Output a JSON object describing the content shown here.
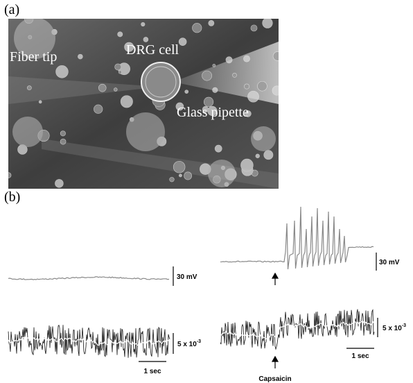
{
  "panel_a": {
    "label": "(a)",
    "annotations": [
      "Fiber tip",
      "DRG cell",
      "Glass pipette"
    ]
  },
  "panel_b": {
    "label": "(b)",
    "voltage_scale": [
      "30 mV",
      "30 mV"
    ],
    "signal_scale": [
      {
        "base": "5 x 10",
        "exponent": "-3"
      },
      {
        "base": "5 x 10",
        "exponent": "-3"
      }
    ],
    "time_scale": [
      "1 sec",
      "1 sec"
    ],
    "stimulus": "Capsaicin"
  }
}
